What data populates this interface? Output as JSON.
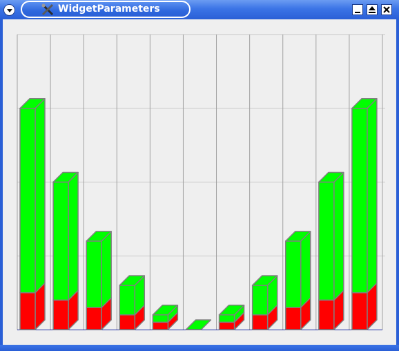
{
  "window": {
    "title": "WidgetParameters",
    "icons": {
      "menu": "chevron-down-icon",
      "app": "tools-icon",
      "minimize": "minimize-icon",
      "maximize": "maximize-icon",
      "close": "close-icon"
    }
  },
  "colors": {
    "titlebar": "#2a5fd6",
    "client_bg": "#efefef",
    "grid": "#a0a0a0",
    "axis": "#1b2aa3",
    "series_top": "#00ff00",
    "series_bottom": "#ff0000",
    "bar_edge": "#808080"
  },
  "chart_data": {
    "type": "bar",
    "stacked": true,
    "three_d": true,
    "grid": true,
    "categories": [
      "",
      "",
      "",
      "",
      "",
      "",
      "",
      "",
      "",
      "",
      ""
    ],
    "ylim": [
      0,
      4
    ],
    "series": [
      {
        "values": [
          0.5,
          0.4,
          0.3,
          0.2,
          0.1,
          0.0,
          0.1,
          0.2,
          0.3,
          0.4,
          0.5
        ]
      },
      {
        "values": [
          2.5,
          1.6,
          0.9,
          0.4,
          0.1,
          0.0,
          0.1,
          0.4,
          0.9,
          1.6,
          2.5
        ]
      }
    ]
  }
}
